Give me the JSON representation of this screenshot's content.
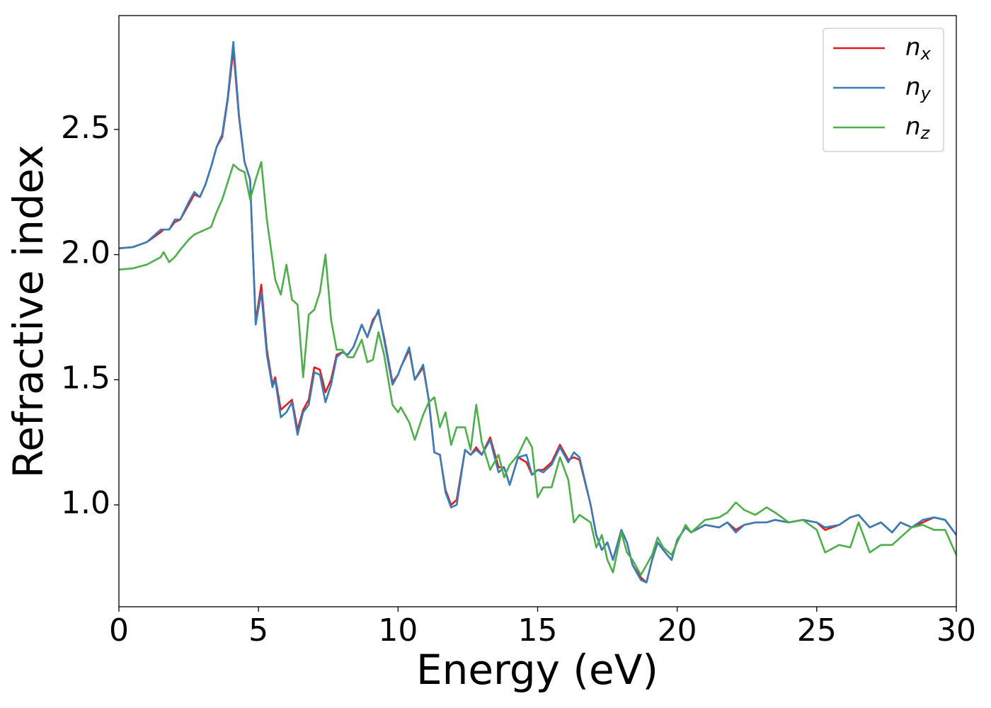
{
  "chart_data": {
    "type": "line",
    "xlabel": "Energy (eV)",
    "ylabel": "Refractive index",
    "xlim": [
      0,
      30
    ],
    "ylim": [
      0.593,
      2.955
    ],
    "xticks": [
      0,
      5,
      10,
      15,
      20,
      25,
      30
    ],
    "yticks": [
      {
        "value": 1,
        "label": "1.0"
      },
      1.5,
      {
        "value": 2,
        "label": "2.0"
      },
      2.5
    ],
    "legend": "upper right",
    "x": [
      0,
      0.5,
      1,
      1.5,
      1.6,
      1.8,
      2,
      2.2,
      2.5,
      2.7,
      2.9,
      3.1,
      3.3,
      3.5,
      3.7,
      3.9,
      4.1,
      4.3,
      4.5,
      4.7,
      4.9,
      5.1,
      5.3,
      5.5,
      5.6,
      5.8,
      6,
      6.2,
      6.4,
      6.6,
      6.8,
      7,
      7.2,
      7.4,
      7.6,
      7.8,
      8,
      8.2,
      8.4,
      8.7,
      8.9,
      9.1,
      9.3,
      9.5,
      9.8,
      10,
      10.1,
      10.4,
      10.6,
      10.9,
      11.1,
      11.3,
      11.5,
      11.7,
      11.9,
      12.1,
      12.4,
      12.6,
      12.8,
      13,
      13.3,
      13.6,
      13.8,
      14,
      14.3,
      14.6,
      14.8,
      15,
      15.2,
      15.5,
      15.8,
      16.1,
      16.3,
      16.5,
      16.9,
      17.1,
      17.3,
      17.5,
      17.7,
      18,
      18.2,
      18.4,
      18.7,
      18.9,
      19.1,
      19.3,
      19.5,
      19.8,
      20,
      20.3,
      20.5,
      21,
      21.5,
      21.8,
      22.1,
      22.4,
      22.8,
      23.2,
      23.5,
      24,
      24.5,
      25,
      25.3,
      25.8,
      26.2,
      26.5,
      26.9,
      27.3,
      27.7,
      28,
      28.4,
      28.8,
      29.2,
      29.6,
      30
    ],
    "series": [
      {
        "name": "nx",
        "color": "#e41a1c",
        "values": [
          2.025,
          2.03,
          2.05,
          2.09,
          2.1,
          2.1,
          2.13,
          2.14,
          2.2,
          2.24,
          2.23,
          2.28,
          2.35,
          2.43,
          2.47,
          2.62,
          2.82,
          2.55,
          2.37,
          2.3,
          1.73,
          1.88,
          1.62,
          1.48,
          1.51,
          1.38,
          1.4,
          1.42,
          1.3,
          1.38,
          1.42,
          1.55,
          1.54,
          1.45,
          1.5,
          1.6,
          1.61,
          1.6,
          1.63,
          1.72,
          1.67,
          1.74,
          1.77,
          1.67,
          1.49,
          1.52,
          1.55,
          1.62,
          1.5,
          1.55,
          1.42,
          1.21,
          1.2,
          1.06,
          1.0,
          1.02,
          1.22,
          1.2,
          1.23,
          1.2,
          1.27,
          1.15,
          1.15,
          1.08,
          1.19,
          1.17,
          1.12,
          1.14,
          1.14,
          1.17,
          1.24,
          1.18,
          1.19,
          1.18,
          1.0,
          0.88,
          0.82,
          0.85,
          0.78,
          0.9,
          0.85,
          0.76,
          0.71,
          0.69,
          0.78,
          0.85,
          0.82,
          0.78,
          0.86,
          0.91,
          0.89,
          0.92,
          0.91,
          0.93,
          0.9,
          0.92,
          0.93,
          0.93,
          0.94,
          0.93,
          0.94,
          0.93,
          0.9,
          0.92,
          0.95,
          0.96,
          0.91,
          0.93,
          0.89,
          0.93,
          0.91,
          0.93,
          0.95,
          0.94,
          0.88
        ]
      },
      {
        "name": "ny",
        "color": "#377eb8",
        "values": [
          2.025,
          2.03,
          2.05,
          2.1,
          2.1,
          2.1,
          2.14,
          2.14,
          2.21,
          2.25,
          2.23,
          2.28,
          2.35,
          2.43,
          2.48,
          2.63,
          2.85,
          2.56,
          2.37,
          2.3,
          1.72,
          1.85,
          1.6,
          1.47,
          1.5,
          1.35,
          1.37,
          1.41,
          1.28,
          1.37,
          1.4,
          1.53,
          1.52,
          1.41,
          1.48,
          1.59,
          1.61,
          1.6,
          1.63,
          1.72,
          1.67,
          1.73,
          1.78,
          1.66,
          1.48,
          1.52,
          1.55,
          1.63,
          1.5,
          1.56,
          1.42,
          1.21,
          1.2,
          1.05,
          0.99,
          1.0,
          1.22,
          1.2,
          1.22,
          1.2,
          1.26,
          1.13,
          1.15,
          1.08,
          1.19,
          1.2,
          1.12,
          1.14,
          1.13,
          1.16,
          1.23,
          1.17,
          1.21,
          1.19,
          1.0,
          0.88,
          0.82,
          0.85,
          0.78,
          0.9,
          0.85,
          0.76,
          0.7,
          0.69,
          0.78,
          0.85,
          0.82,
          0.78,
          0.86,
          0.91,
          0.89,
          0.92,
          0.91,
          0.93,
          0.89,
          0.92,
          0.93,
          0.93,
          0.94,
          0.93,
          0.94,
          0.93,
          0.91,
          0.92,
          0.95,
          0.96,
          0.91,
          0.93,
          0.89,
          0.93,
          0.91,
          0.94,
          0.95,
          0.94,
          0.88
        ]
      },
      {
        "name": "nz",
        "color": "#4daf4a",
        "values": [
          1.94,
          1.945,
          1.96,
          1.99,
          2.01,
          1.97,
          1.99,
          2.02,
          2.06,
          2.08,
          2.09,
          2.1,
          2.11,
          2.17,
          2.22,
          2.29,
          2.36,
          2.34,
          2.33,
          2.22,
          2.3,
          2.37,
          2.14,
          1.98,
          1.9,
          1.84,
          1.96,
          1.82,
          1.8,
          1.51,
          1.76,
          1.78,
          1.85,
          2.0,
          1.74,
          1.62,
          1.62,
          1.59,
          1.59,
          1.66,
          1.57,
          1.58,
          1.69,
          1.6,
          1.4,
          1.37,
          1.39,
          1.33,
          1.26,
          1.36,
          1.41,
          1.43,
          1.31,
          1.37,
          1.24,
          1.31,
          1.31,
          1.22,
          1.4,
          1.25,
          1.14,
          1.2,
          1.11,
          1.16,
          1.2,
          1.27,
          1.23,
          1.03,
          1.07,
          1.07,
          1.19,
          1.1,
          0.93,
          0.96,
          0.93,
          0.83,
          0.88,
          0.78,
          0.73,
          0.89,
          0.81,
          0.78,
          0.72,
          0.76,
          0.8,
          0.87,
          0.83,
          0.8,
          0.85,
          0.92,
          0.89,
          0.94,
          0.95,
          0.97,
          1.01,
          0.98,
          0.96,
          0.99,
          0.97,
          0.93,
          0.94,
          0.9,
          0.81,
          0.84,
          0.83,
          0.93,
          0.81,
          0.84,
          0.84,
          0.87,
          0.91,
          0.92,
          0.9,
          0.9,
          0.8
        ]
      }
    ]
  }
}
